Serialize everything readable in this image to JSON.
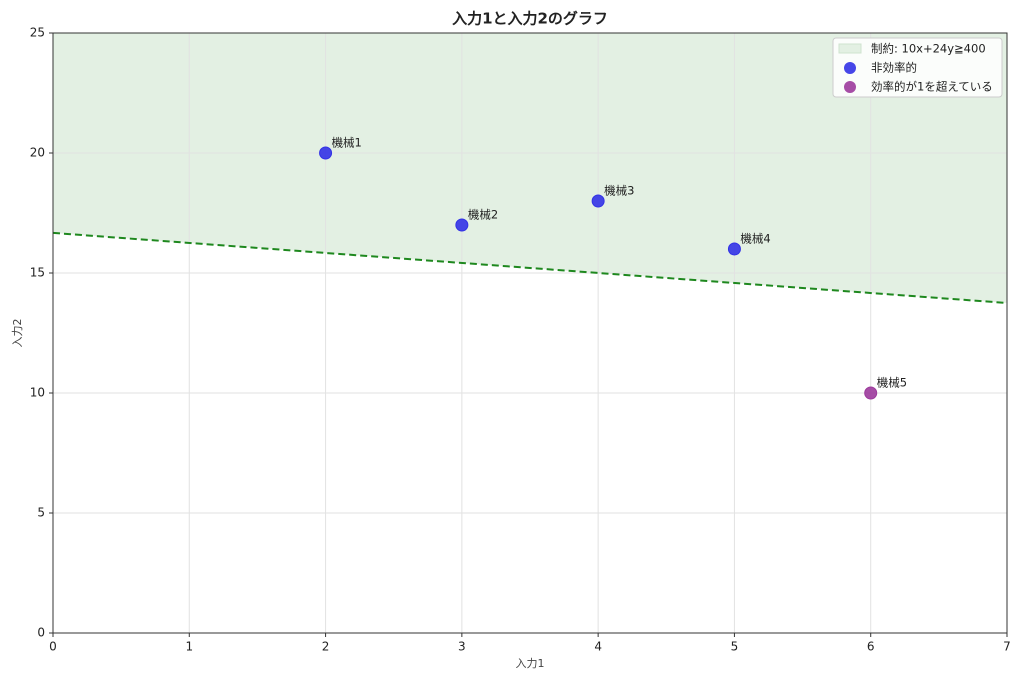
{
  "chart_data": {
    "type": "scatter",
    "title": "入力1と入力2のグラフ",
    "x_label": "入力1",
    "y_label": "入力2",
    "xlim": [
      0,
      7
    ],
    "ylim": [
      0,
      25
    ],
    "xticks": [
      0,
      1,
      2,
      3,
      4,
      5,
      6,
      7
    ],
    "yticks": [
      0,
      5,
      10,
      15,
      20,
      25
    ],
    "grid": true,
    "legend": "upper right",
    "constraint": {
      "label": "制約: 10x+24y≧400",
      "color": "#1e881e",
      "fill": "#e3f0e3",
      "x": [
        0,
        7
      ],
      "y": [
        16.67,
        13.75
      ]
    },
    "series": [
      {
        "name": "非効率的",
        "color": "#3232e6",
        "x": [
          2,
          3,
          4,
          5
        ],
        "values": [
          20,
          17,
          18,
          16
        ],
        "point_labels": [
          "機械1",
          "機械2",
          "機械3",
          "機械4"
        ]
      },
      {
        "name": "効率的が1を超えている",
        "color": "#9c3a9c",
        "x": [
          6
        ],
        "values": [
          10
        ],
        "point_labels": [
          "機械5"
        ]
      }
    ]
  }
}
